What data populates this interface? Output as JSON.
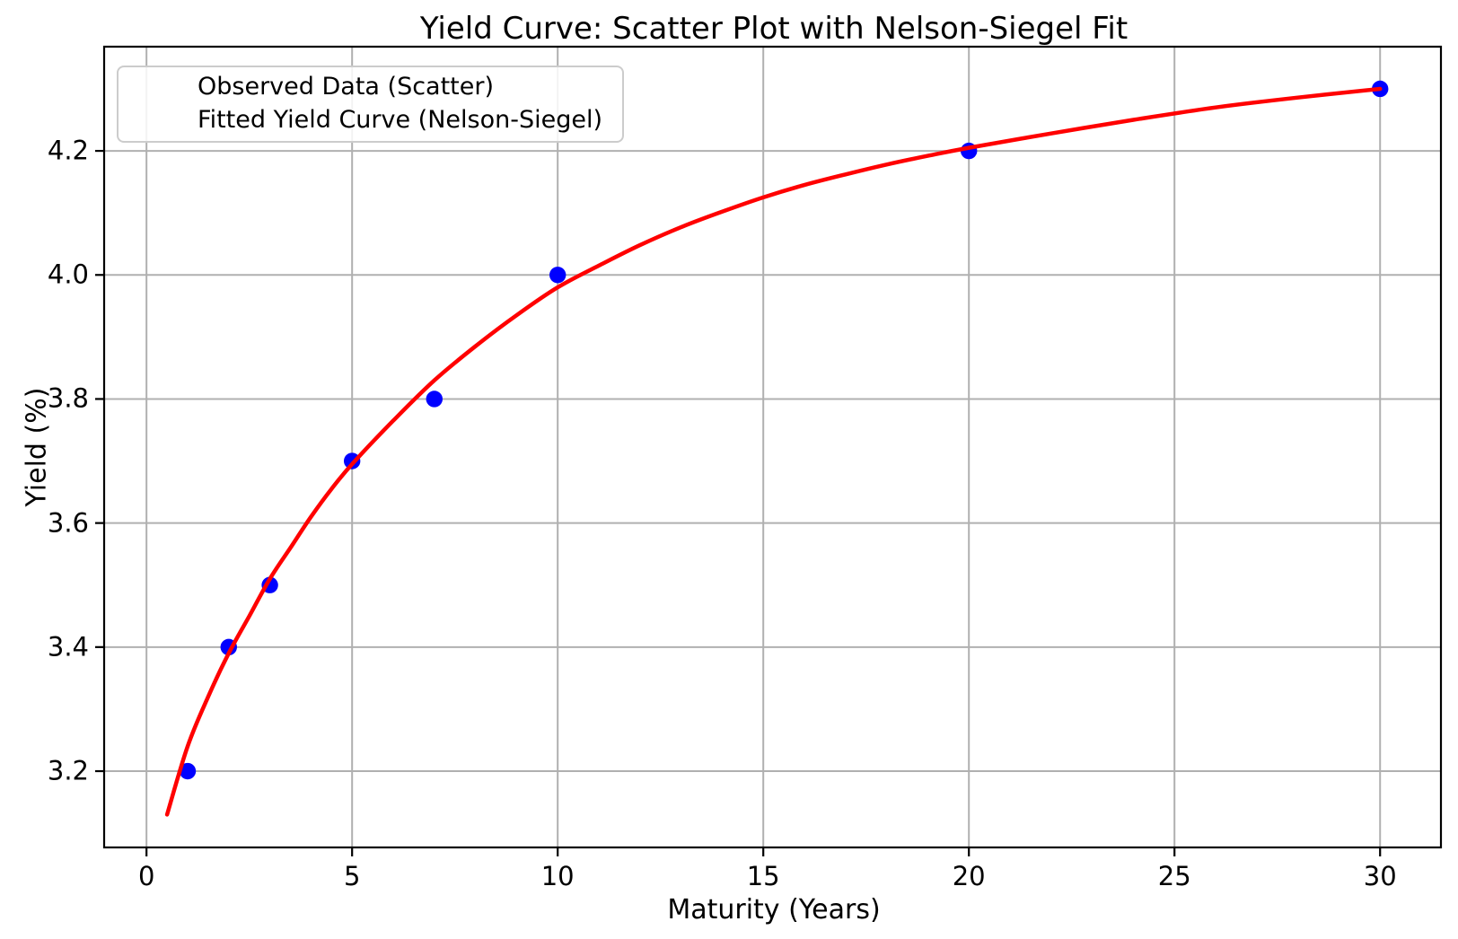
{
  "title": "Yield Curve: Scatter Plot with Nelson-Siegel Fit",
  "colors": {
    "scatter": "#0000ff",
    "fit_line": "#ff0000",
    "grid": "#b0b0b0",
    "spine": "#000000",
    "background": "#ffffff",
    "legend_border": "#cccccc"
  },
  "chart_data": {
    "type": "scatter",
    "title": "Yield Curve: Scatter Plot with Nelson-Siegel Fit",
    "xlabel": "Maturity (Years)",
    "ylabel": "Yield (%)",
    "xlim": [
      -1.03,
      31.48
    ],
    "ylim": [
      3.077,
      4.368
    ],
    "grid": true,
    "legend_position": "upper-left",
    "xticks": {
      "values": [
        0,
        5,
        10,
        15,
        20,
        25,
        30
      ],
      "labels": [
        "0",
        "5",
        "10",
        "15",
        "20",
        "25",
        "30"
      ]
    },
    "yticks": {
      "values": [
        3.2,
        3.4,
        3.6,
        3.8,
        4.0,
        4.2
      ],
      "labels": [
        "3.2",
        "3.4",
        "3.6",
        "3.8",
        "4.0",
        "4.2"
      ]
    },
    "series": [
      {
        "name": "Observed Data (Scatter)",
        "type": "scatter",
        "color": "#0000ff",
        "x": [
          1,
          2,
          3,
          5,
          7,
          10,
          20,
          30
        ],
        "y": [
          3.2,
          3.4,
          3.5,
          3.7,
          3.8,
          4.0,
          4.2,
          4.3
        ]
      },
      {
        "name": "Fitted Yield Curve (Nelson-Siegel)",
        "type": "line",
        "color": "#ff0000",
        "x": [
          0.5,
          1,
          1.5,
          2,
          2.5,
          3,
          3.5,
          4,
          4.5,
          5,
          6,
          7,
          8,
          9,
          10,
          11,
          12,
          13,
          14,
          15,
          16,
          17,
          18,
          19,
          20,
          22,
          24,
          26,
          28,
          30
        ],
        "y": [
          3.13,
          3.24,
          3.32,
          3.39,
          3.45,
          3.51,
          3.56,
          3.61,
          3.655,
          3.695,
          3.765,
          3.83,
          3.885,
          3.935,
          3.98,
          4.015,
          4.048,
          4.077,
          4.102,
          4.125,
          4.145,
          4.162,
          4.178,
          4.192,
          4.205,
          4.228,
          4.25,
          4.27,
          4.286,
          4.3
        ]
      }
    ]
  }
}
